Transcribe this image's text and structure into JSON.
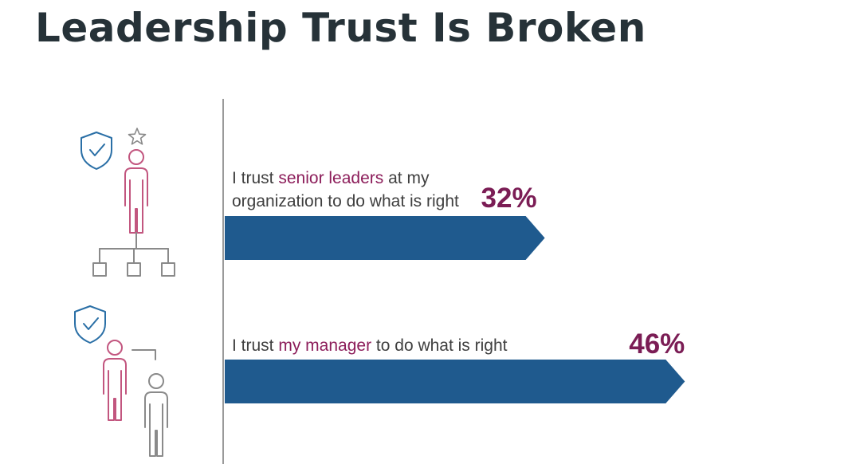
{
  "page": {
    "title": "Leadership Trust Is Broken"
  },
  "colors": {
    "bar": "#1f5a8e",
    "highlight": "#8c1d5a",
    "value": "#7b1d55",
    "title": "#263238",
    "icon_pink": "#c2567f",
    "icon_gray": "#8a8a8a",
    "icon_blue": "#2a6fa6"
  },
  "chart_data": {
    "type": "bar",
    "orientation": "horizontal",
    "categories": [
      "I trust senior leaders at my organization to do what is right",
      "I trust my manager to do what is right"
    ],
    "values": [
      32,
      46
    ],
    "value_labels": [
      "32%",
      "46%"
    ],
    "unit": "%",
    "xlim": [
      0,
      60
    ],
    "grid": false,
    "legend": "none",
    "icons": [
      "senior-leader-org-chart-icon",
      "manager-employee-icon"
    ]
  },
  "labels": {
    "row1": {
      "pre": "I trust ",
      "highlight": "senior leaders",
      "post": " at my",
      "line2": "organization to do what is right"
    },
    "row2": {
      "pre": "I trust ",
      "highlight": "my manager",
      "post": " to do what is right"
    }
  }
}
